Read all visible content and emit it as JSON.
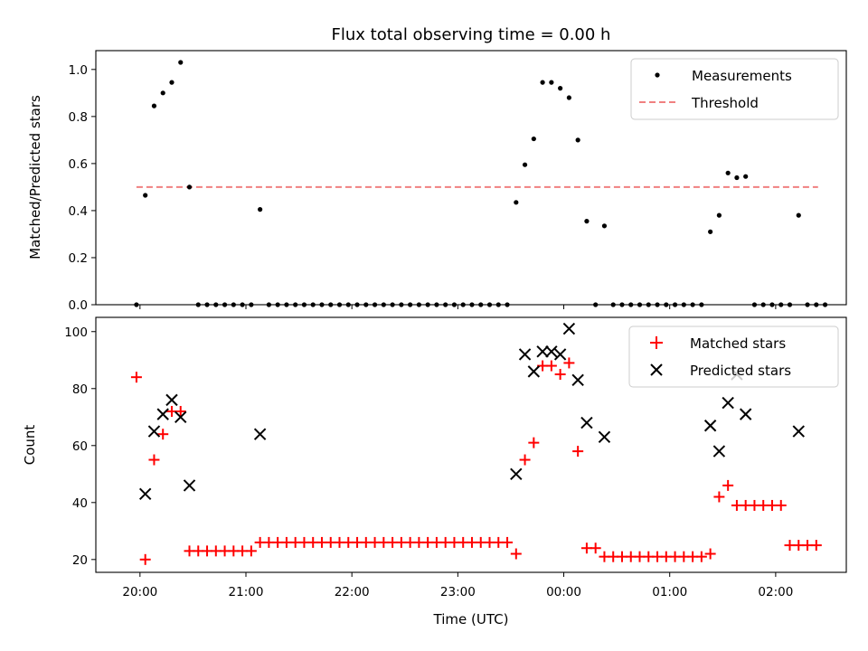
{
  "chart_data": [
    {
      "type": "scatter",
      "title": "Flux total observing time = 0.00 h",
      "ylabel": "Matched/Predicted stars",
      "xlabel": "",
      "ylim": [
        0,
        1.08
      ],
      "yticks": [
        "0.0",
        "0.2",
        "0.4",
        "0.6",
        "0.8",
        "1.0"
      ],
      "ytick_values": [
        0,
        0.2,
        0.4,
        0.6,
        0.8,
        1.0
      ],
      "legend_position": "top-right",
      "legend": [
        "Measurements",
        "Threshold"
      ],
      "threshold": {
        "name": "Threshold",
        "value": 0.5,
        "x_range": [
          "19:58",
          "02:24"
        ],
        "color": "#f08080"
      },
      "series": [
        {
          "name": "Measurements",
          "color": "#000000",
          "marker": "dot",
          "points": [
            [
              "19:58",
              0.0
            ],
            [
              "20:03",
              0.465
            ],
            [
              "20:08",
              0.845
            ],
            [
              "20:13",
              0.9
            ],
            [
              "20:18",
              0.945
            ],
            [
              "20:23",
              1.03
            ],
            [
              "20:28",
              0.5
            ],
            [
              "20:33",
              0.0
            ],
            [
              "20:38",
              0.0
            ],
            [
              "20:43",
              0.0
            ],
            [
              "20:48",
              0.0
            ],
            [
              "20:53",
              0.0
            ],
            [
              "20:58",
              0.0
            ],
            [
              "21:03",
              0.0
            ],
            [
              "21:08",
              0.405
            ],
            [
              "21:13",
              0.0
            ],
            [
              "21:18",
              0.0
            ],
            [
              "21:23",
              0.0
            ],
            [
              "21:28",
              0.0
            ],
            [
              "21:33",
              0.0
            ],
            [
              "21:38",
              0.0
            ],
            [
              "21:43",
              0.0
            ],
            [
              "21:48",
              0.0
            ],
            [
              "21:53",
              0.0
            ],
            [
              "21:58",
              0.0
            ],
            [
              "22:03",
              0.0
            ],
            [
              "22:08",
              0.0
            ],
            [
              "22:13",
              0.0
            ],
            [
              "22:18",
              0.0
            ],
            [
              "22:23",
              0.0
            ],
            [
              "22:28",
              0.0
            ],
            [
              "22:33",
              0.0
            ],
            [
              "22:38",
              0.0
            ],
            [
              "22:43",
              0.0
            ],
            [
              "22:48",
              0.0
            ],
            [
              "22:53",
              0.0
            ],
            [
              "22:58",
              0.0
            ],
            [
              "23:03",
              0.0
            ],
            [
              "23:08",
              0.0
            ],
            [
              "23:13",
              0.0
            ],
            [
              "23:18",
              0.0
            ],
            [
              "23:23",
              0.0
            ],
            [
              "23:28",
              0.0
            ],
            [
              "23:33",
              0.435
            ],
            [
              "23:38",
              0.595
            ],
            [
              "23:43",
              0.705
            ],
            [
              "23:48",
              0.945
            ],
            [
              "23:53",
              0.945
            ],
            [
              "23:58",
              0.92
            ],
            [
              "00:03",
              0.88
            ],
            [
              "00:08",
              0.7
            ],
            [
              "00:13",
              0.355
            ],
            [
              "00:18",
              0.0
            ],
            [
              "00:23",
              0.335
            ],
            [
              "00:28",
              0.0
            ],
            [
              "00:33",
              0.0
            ],
            [
              "00:38",
              0.0
            ],
            [
              "00:43",
              0.0
            ],
            [
              "00:48",
              0.0
            ],
            [
              "00:53",
              0.0
            ],
            [
              "00:58",
              0.0
            ],
            [
              "01:03",
              0.0
            ],
            [
              "01:08",
              0.0
            ],
            [
              "01:13",
              0.0
            ],
            [
              "01:18",
              0.0
            ],
            [
              "01:23",
              0.31
            ],
            [
              "01:28",
              0.38
            ],
            [
              "01:33",
              0.56
            ],
            [
              "01:38",
              0.54
            ],
            [
              "01:43",
              0.545
            ],
            [
              "01:48",
              0.0
            ],
            [
              "01:53",
              0.0
            ],
            [
              "01:58",
              0.0
            ],
            [
              "02:03",
              0.0
            ],
            [
              "02:08",
              0.0
            ],
            [
              "02:13",
              0.38
            ],
            [
              "02:18",
              0.0
            ],
            [
              "02:23",
              0.0
            ],
            [
              "02:28",
              0.0
            ]
          ]
        }
      ]
    },
    {
      "type": "scatter",
      "title": "",
      "ylabel": "Count",
      "xlabel": "Time (UTC)",
      "ylim": [
        15.5,
        105
      ],
      "yticks": [
        "20",
        "40",
        "60",
        "80",
        "100"
      ],
      "ytick_values": [
        20,
        40,
        60,
        80,
        100
      ],
      "xticks": [
        "20:00",
        "21:00",
        "22:00",
        "23:00",
        "00:00",
        "01:00",
        "02:00"
      ],
      "xlim": [
        "19:35",
        "02:40"
      ],
      "legend_position": "top-right",
      "legend": [
        "Matched stars",
        "Predicted stars"
      ],
      "series": [
        {
          "name": "Matched stars",
          "color": "#ff0000",
          "marker": "plus",
          "points": [
            [
              "19:58",
              84
            ],
            [
              "20:03",
              20
            ],
            [
              "20:08",
              55
            ],
            [
              "20:13",
              64
            ],
            [
              "20:18",
              72
            ],
            [
              "20:23",
              72
            ],
            [
              "20:28",
              23
            ],
            [
              "20:33",
              23
            ],
            [
              "20:38",
              23
            ],
            [
              "20:43",
              23
            ],
            [
              "20:48",
              23
            ],
            [
              "20:53",
              23
            ],
            [
              "20:58",
              23
            ],
            [
              "21:03",
              23
            ],
            [
              "21:08",
              26
            ],
            [
              "21:13",
              26
            ],
            [
              "21:18",
              26
            ],
            [
              "21:23",
              26
            ],
            [
              "21:28",
              26
            ],
            [
              "21:33",
              26
            ],
            [
              "21:38",
              26
            ],
            [
              "21:43",
              26
            ],
            [
              "21:48",
              26
            ],
            [
              "21:53",
              26
            ],
            [
              "21:58",
              26
            ],
            [
              "22:03",
              26
            ],
            [
              "22:08",
              26
            ],
            [
              "22:13",
              26
            ],
            [
              "22:18",
              26
            ],
            [
              "22:23",
              26
            ],
            [
              "22:28",
              26
            ],
            [
              "22:33",
              26
            ],
            [
              "22:38",
              26
            ],
            [
              "22:43",
              26
            ],
            [
              "22:48",
              26
            ],
            [
              "22:53",
              26
            ],
            [
              "22:58",
              26
            ],
            [
              "23:03",
              26
            ],
            [
              "23:08",
              26
            ],
            [
              "23:13",
              26
            ],
            [
              "23:18",
              26
            ],
            [
              "23:23",
              26
            ],
            [
              "23:28",
              26
            ],
            [
              "23:33",
              22
            ],
            [
              "23:38",
              55
            ],
            [
              "23:43",
              61
            ],
            [
              "23:48",
              88
            ],
            [
              "23:53",
              88
            ],
            [
              "23:58",
              85
            ],
            [
              "00:03",
              89
            ],
            [
              "00:08",
              58
            ],
            [
              "00:13",
              24
            ],
            [
              "00:18",
              24
            ],
            [
              "00:23",
              21
            ],
            [
              "00:28",
              21
            ],
            [
              "00:33",
              21
            ],
            [
              "00:38",
              21
            ],
            [
              "00:43",
              21
            ],
            [
              "00:48",
              21
            ],
            [
              "00:53",
              21
            ],
            [
              "00:58",
              21
            ],
            [
              "01:03",
              21
            ],
            [
              "01:08",
              21
            ],
            [
              "01:13",
              21
            ],
            [
              "01:18",
              21
            ],
            [
              "01:23",
              22
            ],
            [
              "01:28",
              42
            ],
            [
              "01:33",
              46
            ],
            [
              "01:38",
              39
            ],
            [
              "01:43",
              39
            ],
            [
              "01:48",
              39
            ],
            [
              "01:53",
              39
            ],
            [
              "01:58",
              39
            ],
            [
              "02:03",
              39
            ],
            [
              "02:08",
              25
            ],
            [
              "02:13",
              25
            ],
            [
              "02:18",
              25
            ],
            [
              "02:23",
              25
            ]
          ]
        },
        {
          "name": "Predicted stars",
          "color": "#000000",
          "marker": "x",
          "points": [
            [
              "20:03",
              43
            ],
            [
              "20:08",
              65
            ],
            [
              "20:13",
              71
            ],
            [
              "20:18",
              76
            ],
            [
              "20:23",
              70
            ],
            [
              "20:28",
              46
            ],
            [
              "21:08",
              64
            ],
            [
              "23:33",
              50
            ],
            [
              "23:38",
              92
            ],
            [
              "23:43",
              86
            ],
            [
              "23:48",
              93
            ],
            [
              "23:53",
              93
            ],
            [
              "23:58",
              92
            ],
            [
              "00:03",
              101
            ],
            [
              "00:08",
              83
            ],
            [
              "00:13",
              68
            ],
            [
              "00:23",
              63
            ],
            [
              "01:23",
              67
            ],
            [
              "01:28",
              58
            ],
            [
              "01:33",
              75
            ],
            [
              "01:38",
              85
            ],
            [
              "01:43",
              71
            ],
            [
              "02:13",
              65
            ]
          ]
        }
      ]
    }
  ]
}
